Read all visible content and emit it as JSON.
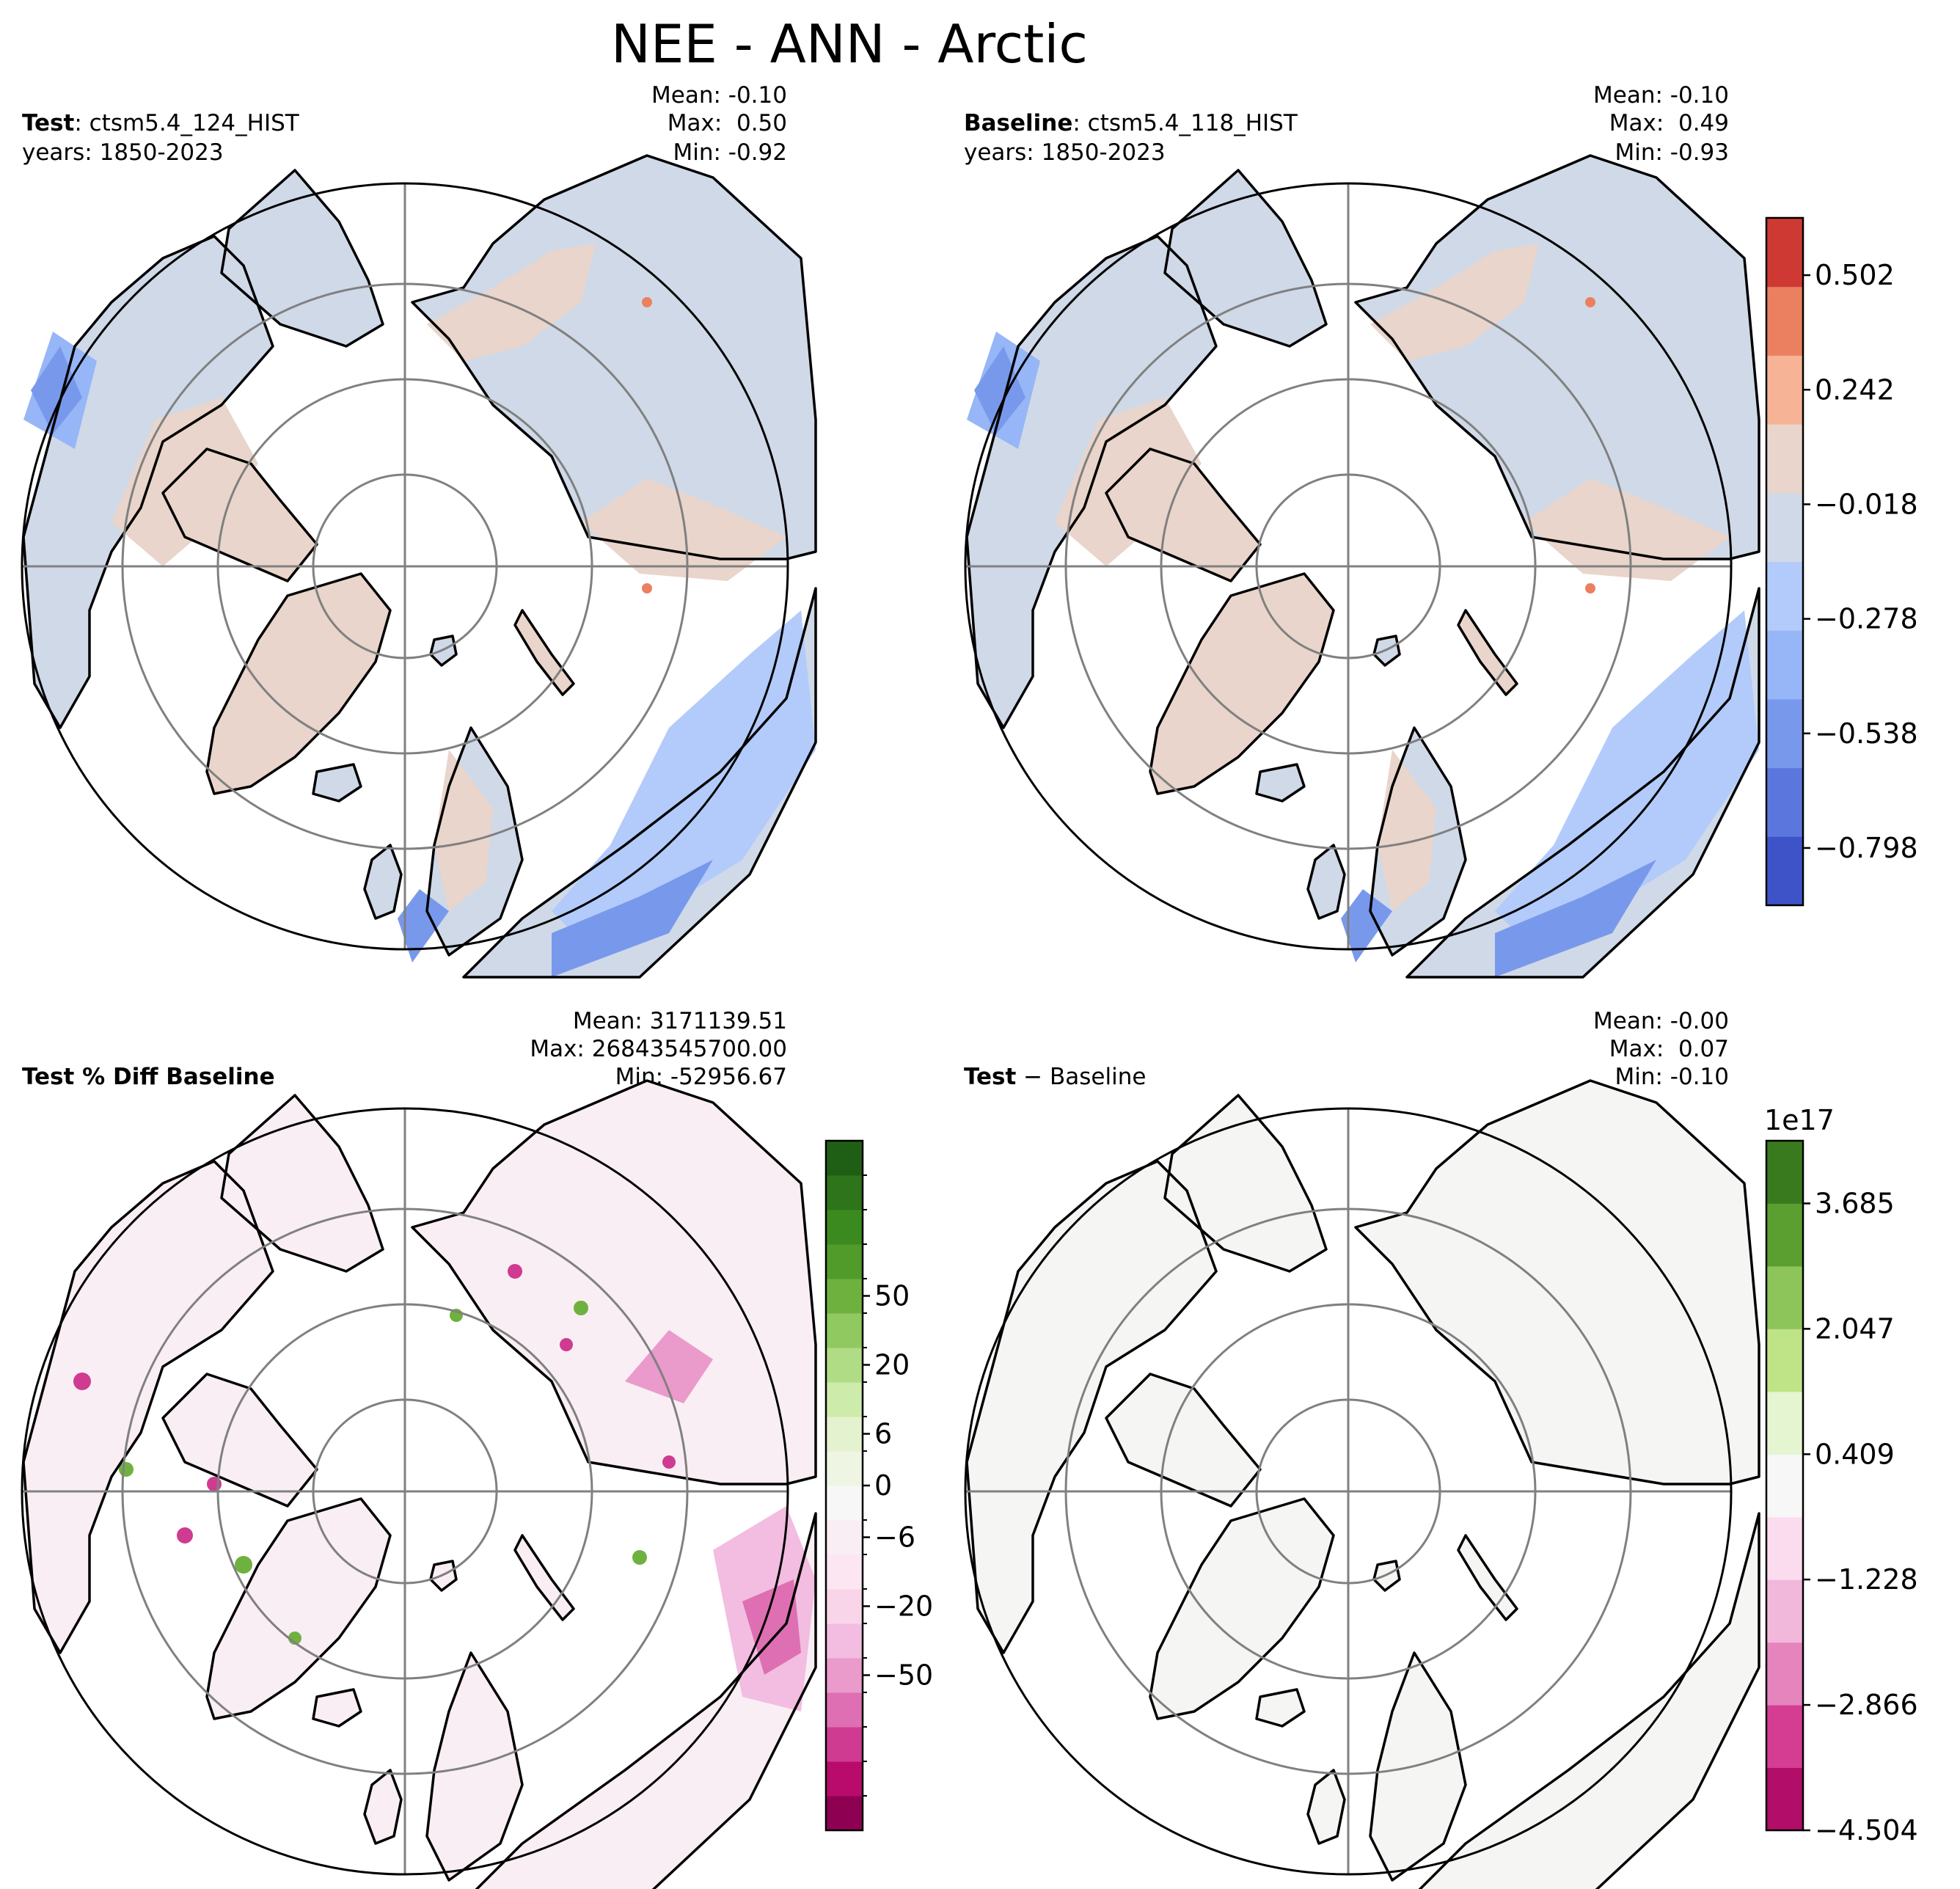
{
  "title": "NEE - ANN - Arctic",
  "colors": {
    "coolwarm": [
      "#3f53c8",
      "#5b77dd",
      "#7899eb",
      "#97b6f7",
      "#b3cbfb",
      "#d0d9e7",
      "#e9d5cb",
      "#f6b395",
      "#eb8060",
      "#ce3a33"
    ],
    "piyg": [
      "#8e0152",
      "#b80b6c",
      "#cf3b91",
      "#de6fb2",
      "#ea9acb",
      "#f2bde0",
      "#f9d5ea",
      "#fbe6f2",
      "#f9eef4",
      "#f7f7f7",
      "#eef5e3",
      "#e4f2cf",
      "#cdebaa",
      "#b0dc86",
      "#8fc95f",
      "#6fb13f",
      "#519b2a",
      "#3b8a1f",
      "#2d741a",
      "#1f5f15"
    ],
    "piyg_small": [
      "#b20d68",
      "#d43d91",
      "#e684bd",
      "#f2b8dc",
      "#fadcee",
      "#f7f7f7",
      "#e5f4d1",
      "#bfe387",
      "#8dc55a",
      "#5b9f30",
      "#3a7a1f"
    ],
    "land_pos": "#e9d5cb",
    "land_neg": "#d0d9e7",
    "diff_bg": "#f9eef4",
    "abs_bg": "#f5f5f4",
    "grid": "#808080"
  },
  "panels": [
    {
      "id": "test",
      "label_bold": "Test",
      "label_rest": ": ctsm5.4_124_HIST",
      "years": "years: 1850-2023",
      "stats": [
        "Mean: -0.10",
        "Max:  0.50",
        "Min: -0.92"
      ],
      "field": "NEE"
    },
    {
      "id": "baseline",
      "label_bold": "Baseline",
      "label_rest": ": ctsm5.4_118_HIST",
      "years": "years: 1850-2023",
      "stats": [
        "Mean: -0.10",
        "Max:  0.49",
        "Min: -0.93"
      ],
      "field": "NEE"
    },
    {
      "id": "pctdiff",
      "label_bold": "Test % Diff Baseline",
      "label_rest": "",
      "years": "",
      "stats": [
        "Mean: 3171139.51",
        "Max: 26843545700.00",
        "Min: -52956.67"
      ],
      "field": "percent difference"
    },
    {
      "id": "absdiff",
      "label_bold": "Test",
      "label_rest": " − Baseline",
      "years": "",
      "stats": [
        "Mean: -0.00",
        "Max:  0.07",
        "Min: -0.10"
      ],
      "field": "difference"
    }
  ],
  "chart_data": [
    {
      "type": "heatmap",
      "projection": "north polar stereographic",
      "title": "Test: ctsm5.4_124_HIST (years: 1850-2023)",
      "stats": {
        "mean": -0.1,
        "max": 0.5,
        "min": -0.92
      },
      "colorbar": {
        "ticks": [
          0.502,
          0.242,
          -0.018,
          -0.278,
          -0.538,
          -0.798
        ],
        "tick_labels": [
          "0.502",
          "0.242",
          "−0.018",
          "−0.278",
          "−0.538",
          "−0.798"
        ],
        "range": [
          -0.928,
          0.632
        ],
        "levels": 10
      },
      "latitude_circles": [
        80,
        70,
        60
      ],
      "meridians": [
        0,
        90,
        180,
        270
      ]
    },
    {
      "type": "heatmap",
      "projection": "north polar stereographic",
      "title": "Baseline: ctsm5.4_118_HIST (years: 1850-2023)",
      "stats": {
        "mean": -0.1,
        "max": 0.49,
        "min": -0.93
      },
      "colorbar": "shared with Test panel",
      "latitude_circles": [
        80,
        70,
        60
      ],
      "meridians": [
        0,
        90,
        180,
        270
      ]
    },
    {
      "type": "heatmap",
      "projection": "north polar stereographic",
      "title": "Test % Diff Baseline",
      "stats": {
        "mean": 3171139.51,
        "max": 26843545700.0,
        "min": -52956.67
      },
      "colorbar": {
        "ticks": [
          50,
          20,
          6,
          0,
          -6,
          -20,
          -50
        ],
        "tick_labels": [
          "50",
          "20",
          "6",
          "0",
          "−6",
          "−20",
          "−50"
        ],
        "levels": 20,
        "scale": "symmetric log-like"
      },
      "latitude_circles": [
        80,
        70,
        60
      ],
      "meridians": [
        0,
        90,
        180,
        270
      ]
    },
    {
      "type": "heatmap",
      "projection": "north polar stereographic",
      "title": "Test − Baseline",
      "stats": {
        "mean": -0.0,
        "max": 0.07,
        "min": -0.1
      },
      "colorbar": {
        "ticks": [
          3.685,
          2.047,
          0.409,
          -1.228,
          -2.866,
          -4.504
        ],
        "tick_labels": [
          "3.685",
          "2.047",
          "0.409",
          "−1.228",
          "−2.866",
          "−4.504"
        ],
        "offset_label": "1e17",
        "range": [
          -4.504,
          4.504
        ],
        "levels": 11
      },
      "latitude_circles": [
        80,
        70,
        60
      ],
      "meridians": [
        0,
        90,
        180,
        270
      ]
    }
  ]
}
